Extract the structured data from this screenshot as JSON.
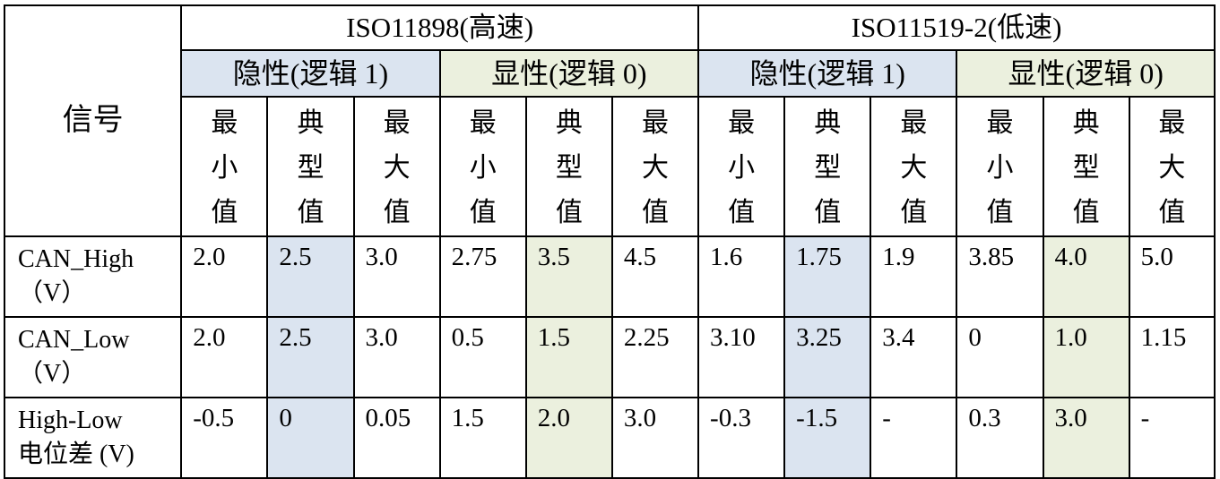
{
  "signal_header": "信号",
  "standards": [
    {
      "name": "ISO11898(高速)"
    },
    {
      "name": "ISO11519-2(低速)"
    }
  ],
  "states": {
    "recessive": "隐性(逻辑 1)",
    "dominant": "显性(逻辑 0)"
  },
  "stats": {
    "min": "最\n小\n值",
    "typ": "典\n型\n值",
    "max": "最\n大\n值"
  },
  "rows": [
    {
      "signal_line1": "CAN_High",
      "signal_line2": "（V）",
      "values": [
        "2.0",
        "2.5",
        "3.0",
        "2.75",
        "3.5",
        "4.5",
        "1.6",
        "1.75",
        "1.9",
        "3.85",
        "4.0",
        "5.0"
      ]
    },
    {
      "signal_line1": "CAN_Low",
      "signal_line2": "（V）",
      "values": [
        "2.0",
        "2.5",
        "3.0",
        "0.5",
        "1.5",
        "2.25",
        "3.10",
        "3.25",
        "3.4",
        "0",
        "1.0",
        "1.15"
      ]
    },
    {
      "signal_line1": "High-Low",
      "signal_line2": "电位差 (V)",
      "values": [
        "-0.5",
        "0",
        "0.05",
        "1.5",
        "2.0",
        "3.0",
        "-0.3",
        "-1.5",
        "-",
        "0.3",
        "3.0",
        "-"
      ]
    }
  ]
}
